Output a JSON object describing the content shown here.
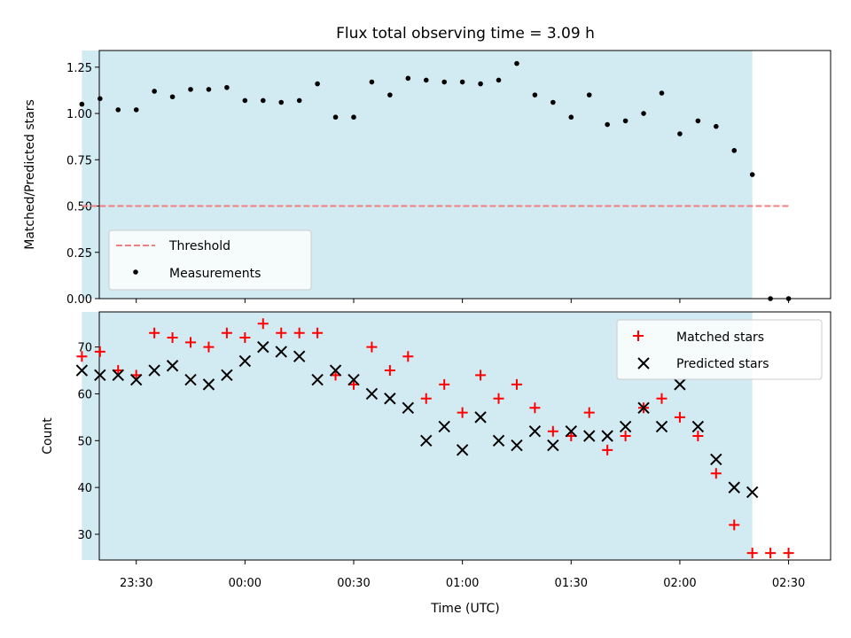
{
  "chart_data": {
    "title": "Flux total observing time = 3.09 h",
    "xlabel": "Time (UTC)",
    "x_ticks": [
      "23:30",
      "00:00",
      "00:30",
      "01:00",
      "01:30",
      "02:00",
      "02:30"
    ],
    "x_tick_minutes": [
      1410,
      1440,
      1470,
      1500,
      1530,
      1560,
      1590
    ],
    "shaded_interval": [
      "23:15",
      "02:20"
    ],
    "colors": {
      "shade": "#add8e6",
      "matched": "#ff0000",
      "predicted": "#000000",
      "threshold": "#f08080",
      "measurements": "#000000"
    },
    "panels": [
      {
        "type": "scatter",
        "ylabel": "Matched/Predicted stars",
        "ylim": [
          0,
          1.34
        ],
        "y_ticks": [
          "0.00",
          "0.25",
          "0.50",
          "0.75",
          "1.00",
          "1.25"
        ],
        "y_tick_values": [
          0,
          0.25,
          0.5,
          0.75,
          1.0,
          1.25
        ],
        "threshold": 0.5,
        "threshold_range": [
          "23:15",
          "02:30"
        ],
        "legend": {
          "position": "lower-left",
          "threshold_label": "Threshold",
          "measurements_label": "Measurements"
        },
        "series": [
          {
            "name": "Measurements",
            "x": [
              "23:15",
              "23:20",
              "23:25",
              "23:30",
              "23:35",
              "23:40",
              "23:45",
              "23:50",
              "23:55",
              "00:00",
              "00:05",
              "00:10",
              "00:15",
              "00:20",
              "00:25",
              "00:30",
              "00:35",
              "00:40",
              "00:45",
              "00:50",
              "00:55",
              "01:00",
              "01:05",
              "01:10",
              "01:15",
              "01:20",
              "01:25",
              "01:30",
              "01:35",
              "01:40",
              "01:45",
              "01:50",
              "01:55",
              "02:00",
              "02:05",
              "02:10",
              "02:15",
              "02:20",
              "02:25",
              "02:30"
            ],
            "y": [
              1.05,
              1.08,
              1.02,
              1.02,
              1.12,
              1.09,
              1.13,
              1.13,
              1.14,
              1.07,
              1.07,
              1.06,
              1.07,
              1.16,
              0.98,
              0.98,
              1.17,
              1.1,
              1.19,
              1.18,
              1.17,
              1.17,
              1.16,
              1.18,
              1.27,
              1.1,
              1.06,
              0.98,
              1.1,
              0.94,
              0.96,
              1.0,
              1.11,
              0.89,
              0.96,
              0.93,
              0.8,
              0.67,
              0.0,
              0.0
            ]
          }
        ]
      },
      {
        "type": "scatter",
        "ylabel": "Count",
        "ylim": [
          24.5,
          77.5
        ],
        "y_ticks": [
          "30",
          "40",
          "50",
          "60",
          "70"
        ],
        "y_tick_values": [
          30,
          40,
          50,
          60,
          70
        ],
        "legend": {
          "position": "top-right"
        },
        "series": [
          {
            "name": "Matched stars",
            "marker": "+",
            "x": [
              "23:15",
              "23:20",
              "23:25",
              "23:30",
              "23:35",
              "23:40",
              "23:45",
              "23:50",
              "23:55",
              "00:00",
              "00:05",
              "00:10",
              "00:15",
              "00:20",
              "00:25",
              "00:30",
              "00:35",
              "00:40",
              "00:45",
              "00:50",
              "00:55",
              "01:00",
              "01:05",
              "01:10",
              "01:15",
              "01:20",
              "01:25",
              "01:30",
              "01:35",
              "01:40",
              "01:45",
              "01:50",
              "01:55",
              "02:00",
              "02:05",
              "02:10",
              "02:15",
              "02:20",
              "02:25",
              "02:30"
            ],
            "y": [
              68,
              69,
              65,
              64,
              73,
              72,
              71,
              70,
              73,
              72,
              75,
              73,
              73,
              73,
              64,
              62,
              70,
              65,
              68,
              59,
              62,
              56,
              64,
              59,
              62,
              57,
              52,
              51,
              56,
              48,
              51,
              57,
              59,
              55,
              51,
              43,
              32,
              26,
              26,
              26
            ]
          },
          {
            "name": "Predicted stars",
            "marker": "x",
            "x": [
              "23:15",
              "23:20",
              "23:25",
              "23:30",
              "23:35",
              "23:40",
              "23:45",
              "23:50",
              "23:55",
              "00:00",
              "00:05",
              "00:10",
              "00:15",
              "00:20",
              "00:25",
              "00:30",
              "00:35",
              "00:40",
              "00:45",
              "00:50",
              "00:55",
              "01:00",
              "01:05",
              "01:10",
              "01:15",
              "01:20",
              "01:25",
              "01:30",
              "01:35",
              "01:40",
              "01:45",
              "01:50",
              "01:55",
              "02:00",
              "02:05",
              "02:10",
              "02:15",
              "02:20"
            ],
            "y": [
              65,
              64,
              64,
              63,
              65,
              66,
              63,
              62,
              64,
              67,
              70,
              69,
              68,
              63,
              65,
              63,
              60,
              59,
              57,
              50,
              53,
              48,
              55,
              50,
              49,
              52,
              49,
              52,
              51,
              51,
              53,
              57,
              53,
              62,
              53,
              46,
              40,
              39
            ]
          }
        ]
      }
    ]
  }
}
